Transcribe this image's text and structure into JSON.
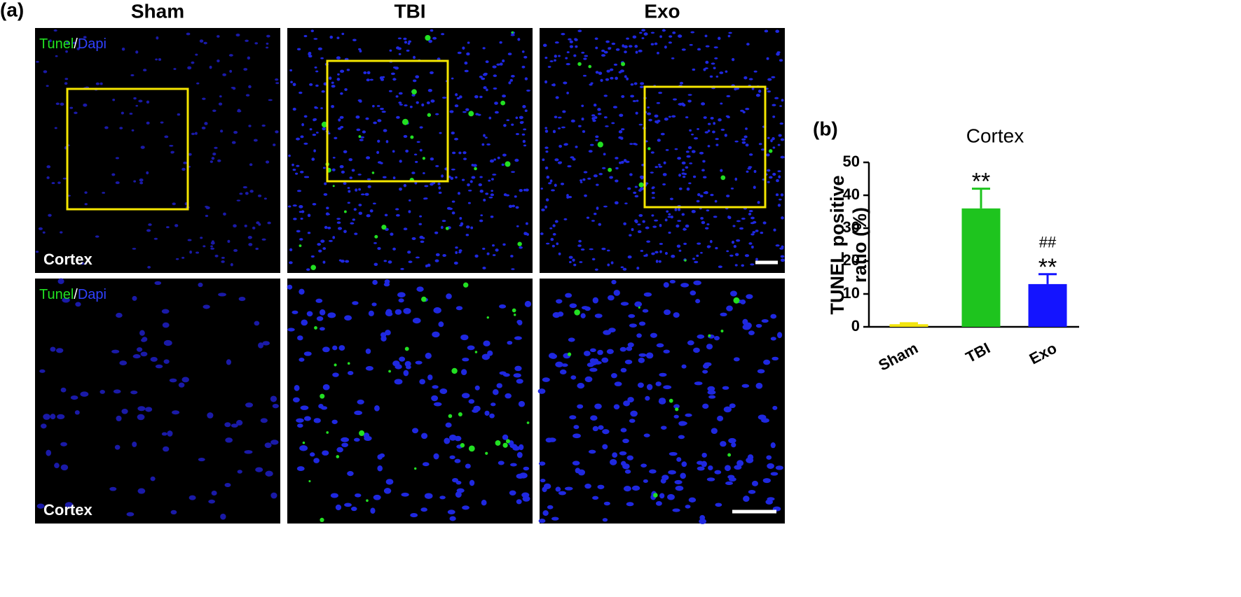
{
  "panel_a": {
    "label": "(a)",
    "columns": [
      "Sham",
      "TBI",
      "Exo"
    ],
    "stain_labels": [
      {
        "tunel": "Tunel",
        "sep": "/",
        "dapi": "Dapi"
      },
      {
        "tunel": "Tunel",
        "sep": "/",
        "dapi": "Dapi"
      }
    ],
    "region_labels": [
      "Cortex",
      "Cortex"
    ]
  },
  "chart_data": {
    "type": "bar",
    "panel_label": "(b)",
    "title": "Cortex",
    "y_label": [
      "TUNEL positive",
      "ratio (%)"
    ],
    "categories": [
      "Sham",
      "TBI",
      "Exo"
    ],
    "values": [
      0.8,
      36,
      13
    ],
    "errors": [
      0.3,
      6,
      3
    ],
    "colors": [
      "#f2e40c",
      "#1ec41e",
      "#1414ff"
    ],
    "annotations": [
      null,
      [
        "**"
      ],
      [
        "##",
        "**"
      ]
    ],
    "ylim": [
      0,
      50
    ],
    "yticks": [
      0,
      10,
      20,
      30,
      40,
      50
    ],
    "grid": false
  }
}
